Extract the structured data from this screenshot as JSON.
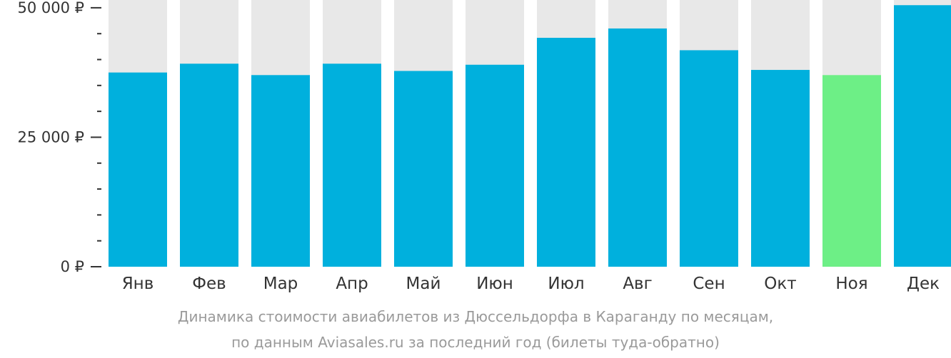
{
  "chart_data": {
    "type": "bar",
    "categories": [
      "Янв",
      "Фев",
      "Мар",
      "Апр",
      "Май",
      "Июн",
      "Июл",
      "Авг",
      "Сен",
      "Окт",
      "Ноя",
      "Дек"
    ],
    "values": [
      37500,
      39200,
      37000,
      39200,
      37800,
      39000,
      44200,
      46000,
      41800,
      38000,
      37000,
      50500
    ],
    "ylim": [
      0,
      51500
    ],
    "yticks": [
      {
        "value": 0,
        "label": "0 ₽"
      },
      {
        "value": 25000,
        "label": "25 000 ₽"
      },
      {
        "value": 50000,
        "label": "50 000 ₽"
      }
    ],
    "minor_tick_step": 5000,
    "highlight_index": 10,
    "colors": {
      "bar": "#00b0dd",
      "highlight": "#6def86",
      "background_bar": "#e8e8e8",
      "axis": "#333333"
    },
    "grid": false,
    "legend": "none"
  },
  "caption": {
    "line1": "Динамика стоимости авиабилетов из Дюссельдорфа в Караганду по месяцам,",
    "line2": "по данным Aviasales.ru за последний год (билеты туда-обратно)"
  }
}
